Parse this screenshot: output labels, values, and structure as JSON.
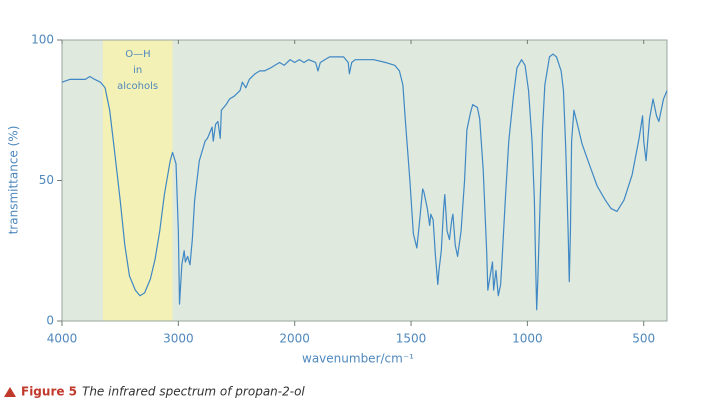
{
  "chart_data": {
    "type": "line",
    "x_label": "wavenumber/cm⁻¹",
    "y_label": "transmittance (%)",
    "xlim": [
      4000,
      400
    ],
    "ylim": [
      0,
      100
    ],
    "xticks": [
      4000,
      3000,
      2000,
      1500,
      1000,
      500
    ],
    "yticks": [
      0,
      50,
      100
    ],
    "x_break": 2000,
    "x_break_factor": 0.5,
    "background": "#dfe9dd",
    "highlight": {
      "xlim": [
        3650,
        3050
      ],
      "color": "#f3f1b5",
      "labels": [
        "O—H",
        "in",
        "alcohols"
      ]
    },
    "x": [
      4000,
      3930,
      3800,
      3760,
      3720,
      3670,
      3630,
      3590,
      3550,
      3500,
      3460,
      3420,
      3370,
      3330,
      3290,
      3240,
      3200,
      3160,
      3120,
      3070,
      3050,
      3020,
      3000,
      2990,
      2970,
      2950,
      2940,
      2920,
      2900,
      2880,
      2860,
      2820,
      2770,
      2750,
      2730,
      2710,
      2700,
      2680,
      2660,
      2640,
      2630,
      2590,
      2560,
      2520,
      2470,
      2450,
      2420,
      2390,
      2340,
      2300,
      2260,
      2210,
      2170,
      2130,
      2090,
      2040,
      2000,
      1980,
      1960,
      1940,
      1910,
      1900,
      1890,
      1870,
      1850,
      1810,
      1790,
      1770,
      1765,
      1755,
      1740,
      1700,
      1660,
      1610,
      1570,
      1550,
      1535,
      1525,
      1505,
      1490,
      1475,
      1465,
      1450,
      1445,
      1430,
      1420,
      1415,
      1405,
      1395,
      1385,
      1380,
      1370,
      1360,
      1355,
      1345,
      1335,
      1325,
      1320,
      1310,
      1300,
      1285,
      1270,
      1260,
      1245,
      1235,
      1215,
      1205,
      1190,
      1175,
      1170,
      1160,
      1150,
      1145,
      1135,
      1125,
      1115,
      1110,
      1095,
      1080,
      1060,
      1045,
      1025,
      1010,
      995,
      980,
      970,
      965,
      960,
      955,
      945,
      935,
      925,
      905,
      890,
      875,
      855,
      845,
      835,
      825,
      820,
      815,
      810,
      800,
      785,
      765,
      735,
      700,
      665,
      640,
      615,
      585,
      550,
      520,
      505,
      500,
      490,
      475,
      460,
      445,
      435,
      415,
      400
    ],
    "series": [
      {
        "color": "#3f88c5",
        "values": [
          85,
          86,
          86,
          87,
          86,
          85,
          83,
          75,
          61,
          43,
          27,
          16,
          11,
          9,
          10,
          15,
          22,
          32,
          45,
          57,
          60,
          56,
          32,
          6,
          20,
          25,
          21,
          23,
          20,
          29,
          43,
          57,
          64,
          65,
          67,
          69,
          64,
          70,
          71,
          65,
          75,
          77,
          79,
          80,
          82,
          85,
          83,
          86,
          88,
          89,
          89,
          90,
          91,
          92,
          91,
          93,
          92,
          93,
          92,
          93,
          92,
          89,
          92,
          93,
          94,
          94,
          94,
          92,
          88,
          92,
          93,
          93,
          93,
          92,
          91,
          89,
          84,
          72,
          50,
          31,
          26,
          34,
          47,
          46,
          40,
          34,
          38,
          36,
          23,
          13,
          18,
          25,
          40,
          45,
          32,
          29,
          36,
          38,
          27,
          23,
          32,
          50,
          68,
          74,
          77,
          76,
          72,
          54,
          25,
          11,
          16,
          21,
          11,
          18,
          9,
          13,
          20,
          43,
          64,
          80,
          90,
          93,
          91,
          82,
          64,
          43,
          22,
          4,
          15,
          43,
          68,
          84,
          94,
          95,
          94,
          89,
          82,
          61,
          32,
          14,
          32,
          64,
          75,
          70,
          63,
          56,
          48,
          43,
          40,
          39,
          43,
          52,
          65,
          73,
          64,
          57,
          72,
          79,
          73,
          71,
          79,
          82
        ]
      }
    ],
    "caption": {
      "label": "Figure 5",
      "text": "The infrared spectrum of propan-2-ol"
    }
  }
}
